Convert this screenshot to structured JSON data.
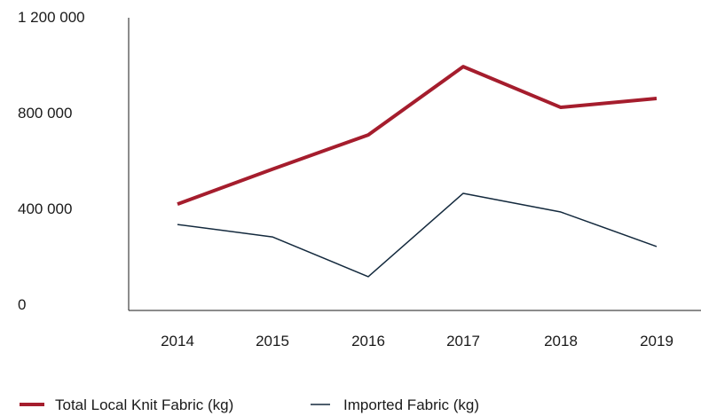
{
  "chart_data": {
    "type": "line",
    "categories": [
      "2014",
      "2015",
      "2016",
      "2017",
      "2018",
      "2019"
    ],
    "series": [
      {
        "name": "Total Local Knit Fabric (kg)",
        "color": "#a51d2d",
        "values": [
          444000,
          590000,
          733000,
          1018000,
          848000,
          885000
        ]
      },
      {
        "name": "Imported Fabric (kg)",
        "color": "#13293d",
        "values": [
          359000,
          307000,
          141000,
          489000,
          411000,
          267000
        ]
      }
    ],
    "ylim": [
      0,
      1200000
    ],
    "yticks": [
      0,
      {
        "value": 400000,
        "label": "400 000"
      },
      {
        "value": 800000,
        "label": "800 000"
      },
      {
        "value": 1200000,
        "label": "1 200 000"
      }
    ],
    "grid": false,
    "legend": "bottom"
  }
}
